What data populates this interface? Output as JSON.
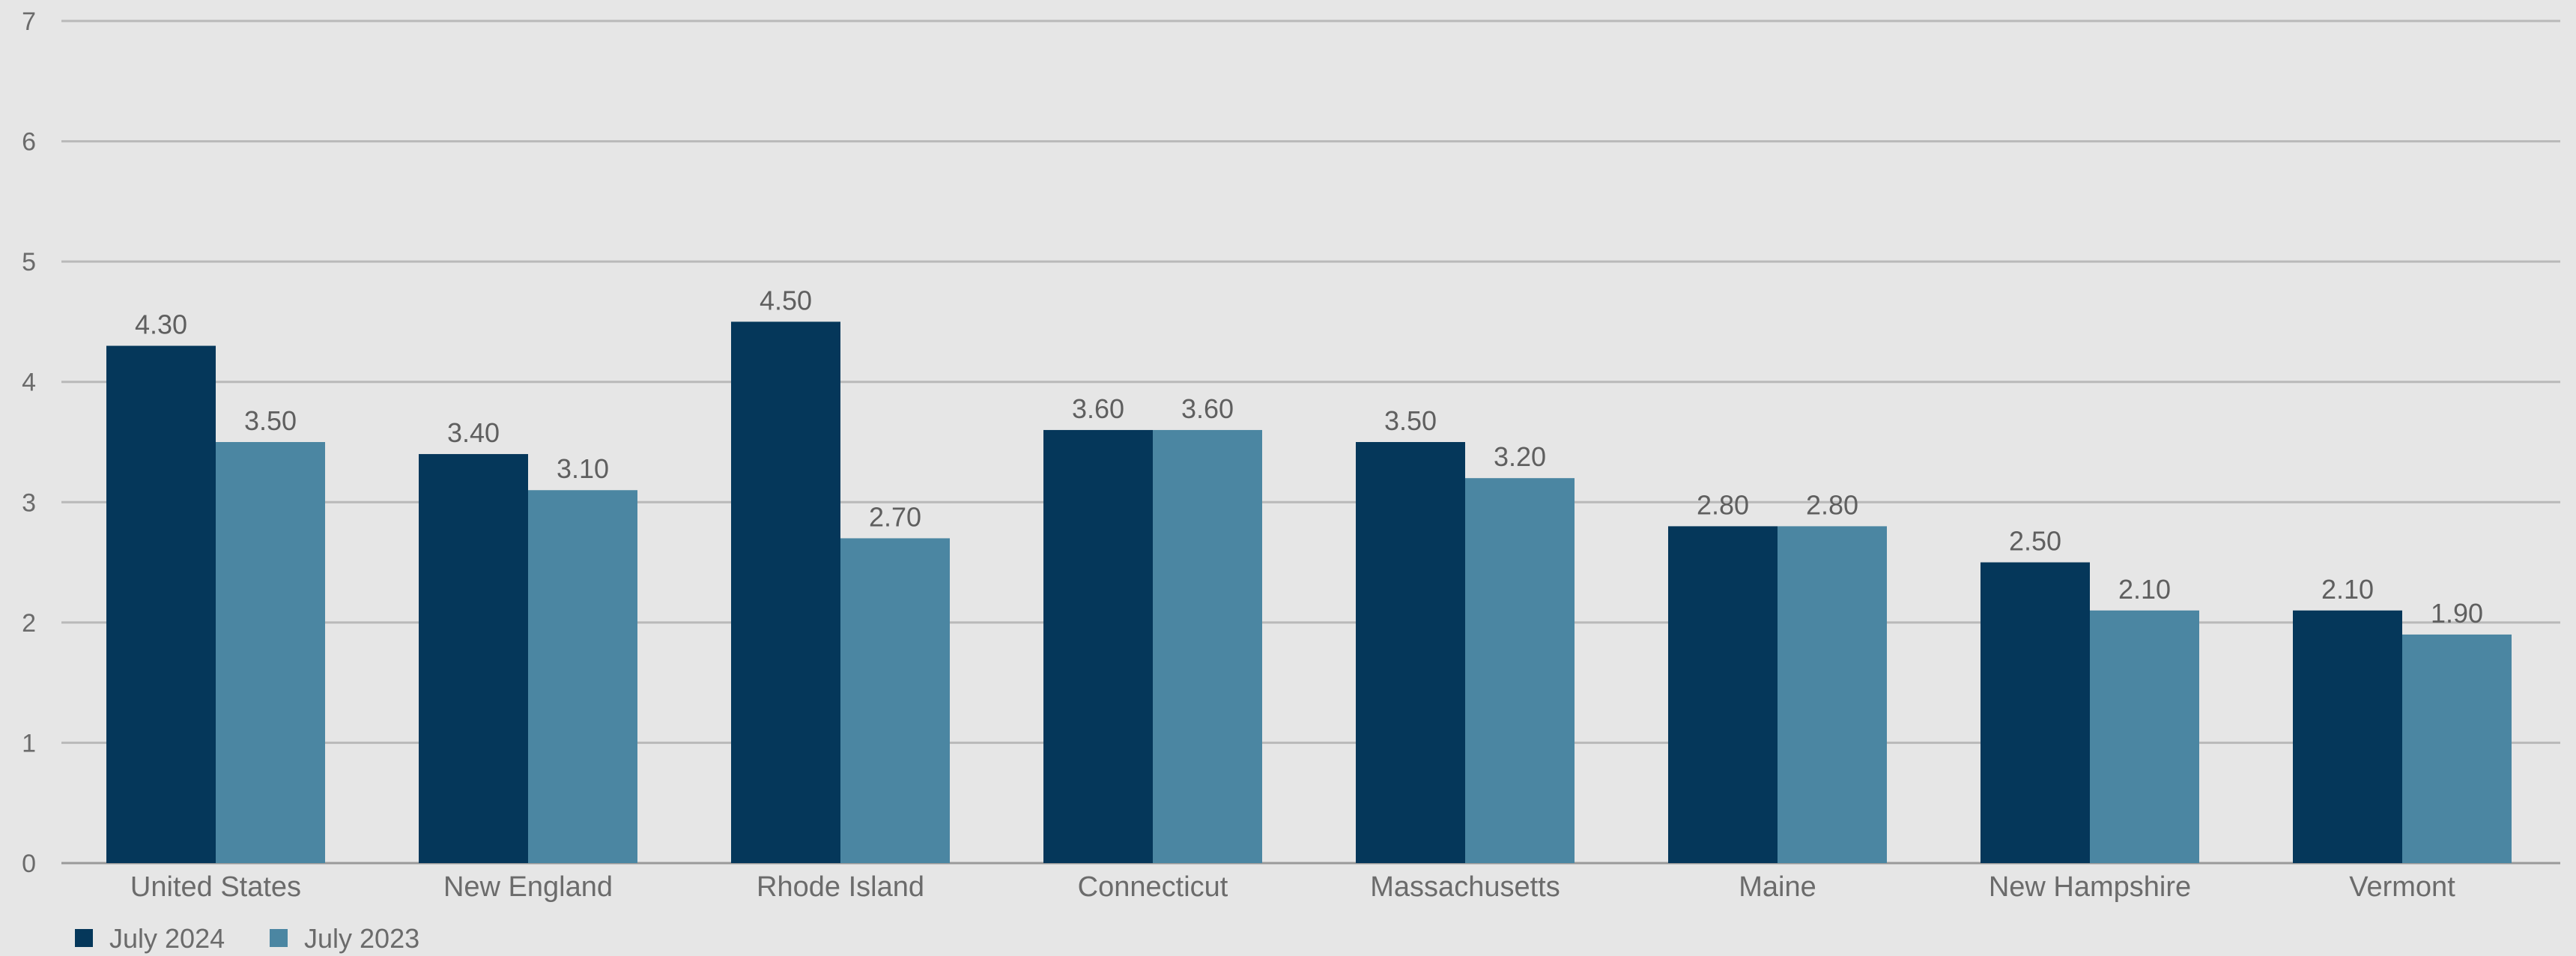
{
  "chart_data": {
    "type": "bar",
    "categories": [
      "United States",
      "New England",
      "Rhode Island",
      "Connecticut",
      "Massachusetts",
      "Maine",
      "New Hampshire",
      "Vermont"
    ],
    "series": [
      {
        "name": "July 2024",
        "color": "#05375a",
        "values": [
          4.3,
          3.4,
          4.5,
          3.6,
          3.5,
          2.8,
          2.5,
          2.1
        ]
      },
      {
        "name": "July 2023",
        "color": "#4b86a2",
        "values": [
          3.5,
          3.1,
          2.7,
          3.6,
          3.2,
          2.8,
          2.1,
          1.9
        ]
      }
    ],
    "data_labels": [
      [
        "4.30",
        "3.40",
        "4.50",
        "3.60",
        "3.50",
        "2.80",
        "2.50",
        "2.10"
      ],
      [
        "3.50",
        "3.10",
        "2.70",
        "3.60",
        "3.20",
        "2.80",
        "2.10",
        "1.90"
      ]
    ],
    "ylim": [
      0,
      7
    ],
    "yticks": [
      0,
      1,
      2,
      3,
      4,
      5,
      6,
      7
    ],
    "grid": true,
    "legend_position": "bottom-left",
    "title": "",
    "xlabel": "",
    "ylabel": ""
  }
}
